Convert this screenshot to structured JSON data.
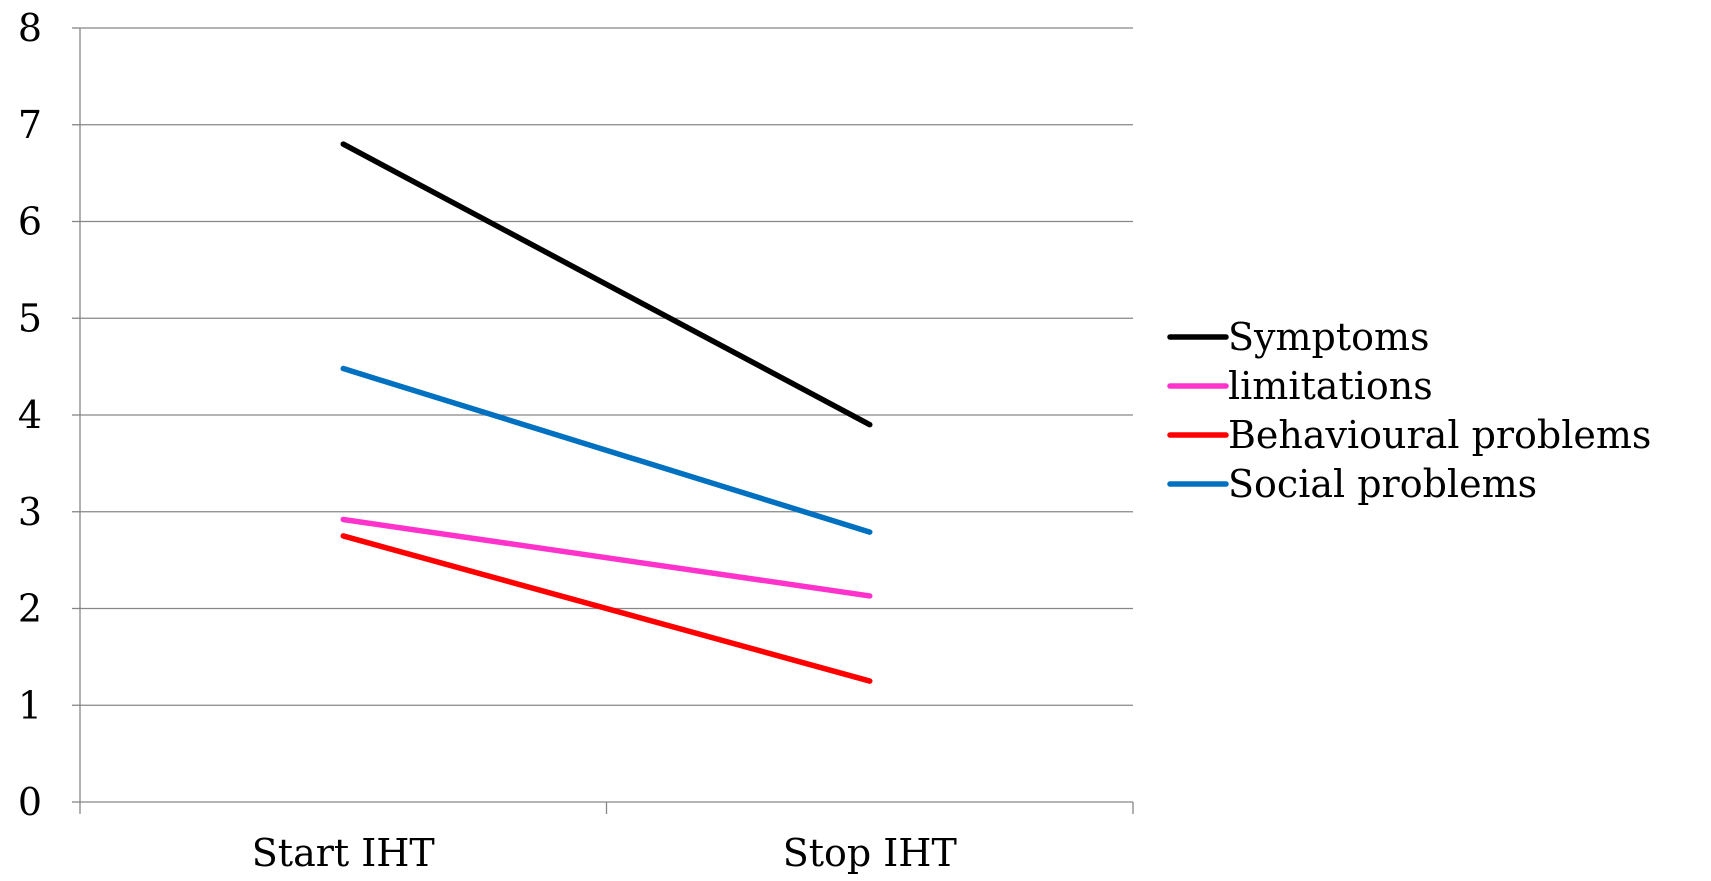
{
  "chart_data": {
    "type": "line",
    "title": "",
    "xlabel": "",
    "ylabel": "",
    "categories": [
      "Start IHT",
      "Stop IHT"
    ],
    "ylim": [
      0,
      8
    ],
    "yticks": [
      "0",
      "1",
      "2",
      "3",
      "4",
      "5",
      "6",
      "7",
      "8"
    ],
    "grid": true,
    "legend_position": "right",
    "series": [
      {
        "name": "Symptoms",
        "color": "#000000",
        "values": [
          6.8,
          3.9
        ]
      },
      {
        "name": "limitations",
        "color": "#ff33cc",
        "values": [
          2.92,
          2.13
        ]
      },
      {
        "name": "Behavioural problems",
        "color": "#ff0000",
        "values": [
          2.75,
          1.25
        ]
      },
      {
        "name": "Social problems",
        "color": "#0070c0",
        "values": [
          4.48,
          2.79
        ]
      }
    ]
  }
}
